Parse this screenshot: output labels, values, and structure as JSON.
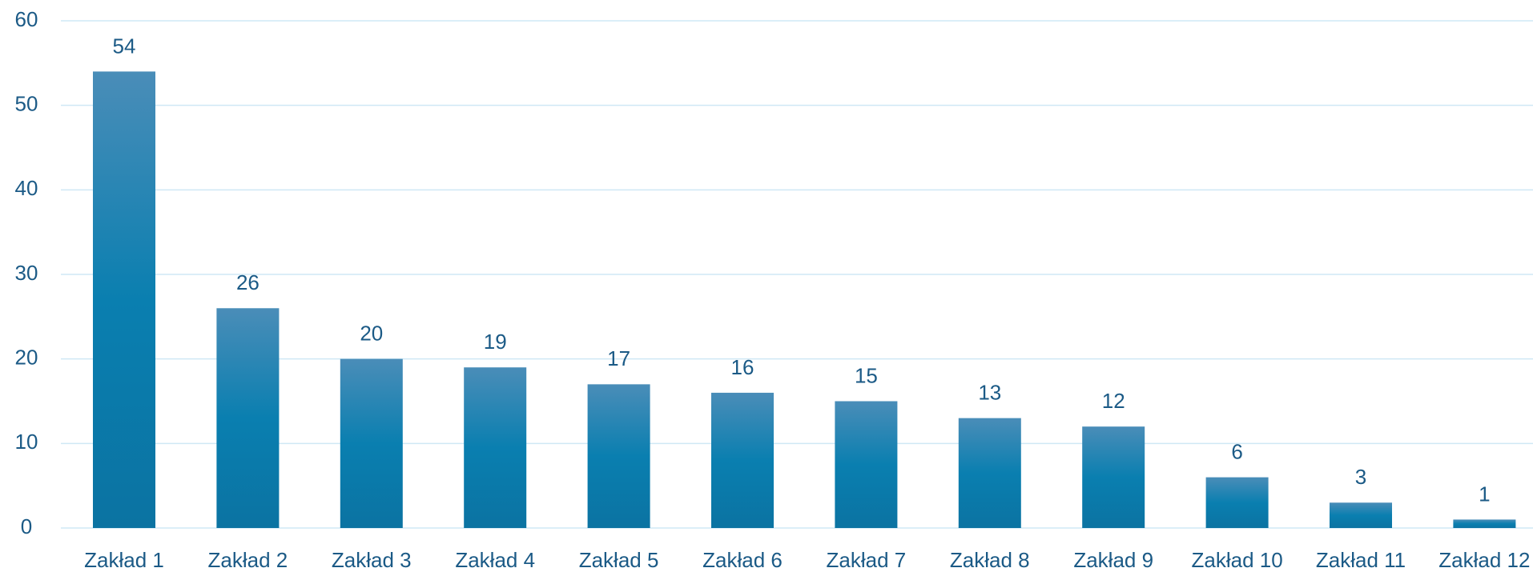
{
  "chart_data": {
    "type": "bar",
    "categories": [
      "Zakład 1",
      "Zakład 2",
      "Zakład 3",
      "Zakład 4",
      "Zakład 5",
      "Zakład 6",
      "Zakład 7",
      "Zakład 8",
      "Zakład 9",
      "Zakład 10",
      "Zakład 11",
      "Zakład 12"
    ],
    "values": [
      54,
      26,
      20,
      19,
      17,
      16,
      15,
      13,
      12,
      6,
      3,
      1
    ],
    "color": "#0b7db0",
    "ylim": [
      0,
      60
    ],
    "yticks": [
      0,
      10,
      20,
      30,
      40,
      50,
      60
    ],
    "grid": true
  }
}
